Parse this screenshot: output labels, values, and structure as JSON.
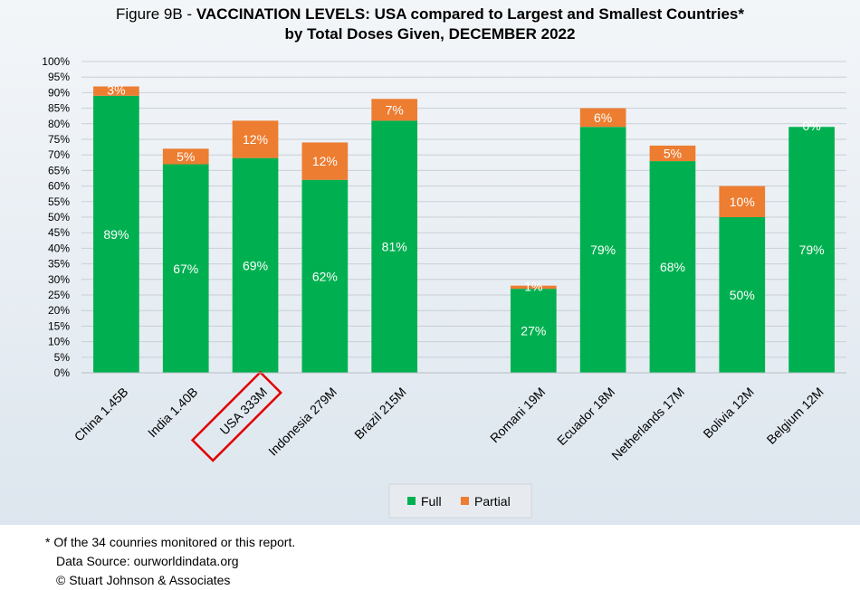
{
  "chart_data": {
    "type": "bar",
    "stacked": true,
    "title_prefix": "Figure 9B - ",
    "title_bold": "VACCINATION LEVELS:  USA compared to Largest and Smallest Countries*",
    "subtitle": "by Total Doses Given, DECEMBER 2022",
    "categories": [
      "China 1.45B",
      "India 1.40B",
      "USA 333M",
      "Indonesia 279M",
      "Brazil 215M",
      "",
      "Romani 19M",
      "Ecuador 18M",
      "Netherlands 17M",
      "Bolivia 12M",
      "Belgium 12M"
    ],
    "series": [
      {
        "name": "Full",
        "color": "#00b050",
        "values": [
          89,
          67,
          69,
          62,
          81,
          null,
          27,
          79,
          68,
          50,
          79
        ],
        "labels": [
          "89%",
          "67%",
          "69%",
          "62%",
          "81%",
          "",
          "27%",
          "79%",
          "68%",
          "50%",
          "79%"
        ]
      },
      {
        "name": "Partial",
        "color": "#ed7d31",
        "values": [
          3,
          5,
          12,
          12,
          7,
          null,
          1,
          6,
          5,
          10,
          0
        ],
        "labels": [
          "3%",
          "5%",
          "12%",
          "12%",
          "7%",
          "",
          "1%",
          "6%",
          "5%",
          "10%",
          "0%"
        ]
      }
    ],
    "ylim": [
      0,
      100
    ],
    "yticks": [
      0,
      5,
      10,
      15,
      20,
      25,
      30,
      35,
      40,
      45,
      50,
      55,
      60,
      65,
      70,
      75,
      80,
      85,
      90,
      95,
      100
    ],
    "ytick_labels": [
      "0%",
      "5%",
      "10%",
      "15%",
      "20%",
      "25%",
      "30%",
      "35%",
      "40%",
      "45%",
      "50%",
      "55%",
      "60%",
      "65%",
      "70%",
      "75%",
      "80%",
      "85%",
      "90%",
      "95%",
      "100%"
    ],
    "grid": true,
    "legend_position": "bottom",
    "highlighted_category": "USA 333M",
    "highlight_color": "#e00000"
  },
  "footnote": {
    "line1": "* Of the 34 counries monitored or this report.",
    "line2": "Data Source:  ourworldindata.org",
    "line3": "© Stuart Johnson & Associates"
  }
}
